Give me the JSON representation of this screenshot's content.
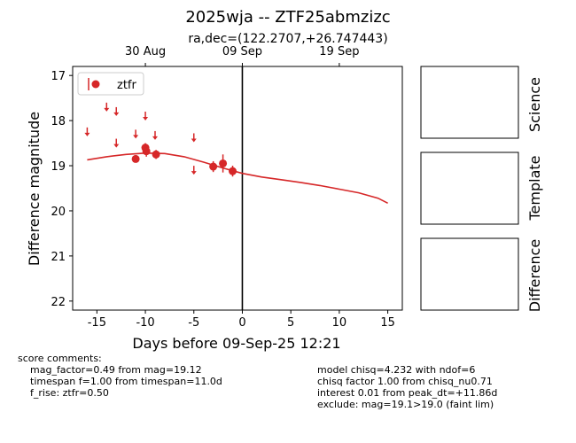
{
  "chart_data": {
    "type": "scatter",
    "title": "2025wja -- ZTF25abmzizc",
    "subtitle": "ra,dec=(122.2707,+26.747443)",
    "xlabel": "Days before 09-Sep-25 12:21",
    "ylabel": "Difference magnitude",
    "xlim": [
      -17.5,
      16.5
    ],
    "ylim": [
      22.2,
      16.8
    ],
    "y_inverted": true,
    "x_ticks": [
      -15,
      -10,
      -5,
      0,
      5,
      10,
      15
    ],
    "y_ticks": [
      17,
      18,
      19,
      20,
      21,
      22
    ],
    "top_axis_ticks": [
      {
        "label": "30 Aug",
        "x": -10
      },
      {
        "label": "09 Sep",
        "x": 0
      },
      {
        "label": "19 Sep",
        "x": 10
      }
    ],
    "vline_x": 0,
    "legend": {
      "label": "ztfr",
      "placement": "top-left"
    },
    "color": "#d62728",
    "detections": [
      {
        "x": -11.0,
        "y": 18.85,
        "err": 0.08
      },
      {
        "x": -10.0,
        "y": 18.6,
        "err": 0.1
      },
      {
        "x": -9.9,
        "y": 18.68,
        "err": 0.12
      },
      {
        "x": -8.9,
        "y": 18.75,
        "err": 0.1
      },
      {
        "x": -3.0,
        "y": 19.02,
        "err": 0.12
      },
      {
        "x": -2.0,
        "y": 18.95,
        "err": 0.2
      },
      {
        "x": -1.0,
        "y": 19.12,
        "err": 0.12
      }
    ],
    "upper_limits": [
      {
        "x": -16.0,
        "y": 18.25
      },
      {
        "x": -14.0,
        "y": 17.7
      },
      {
        "x": -13.0,
        "y": 17.8
      },
      {
        "x": -13.0,
        "y": 18.5
      },
      {
        "x": -11.0,
        "y": 18.3
      },
      {
        "x": -10.0,
        "y": 17.9
      },
      {
        "x": -9.0,
        "y": 18.33
      },
      {
        "x": -5.0,
        "y": 18.38
      },
      {
        "x": -5.0,
        "y": 19.1
      }
    ],
    "model_curve": {
      "x": [
        -16,
        -14,
        -12,
        -10,
        -8,
        -6,
        -4,
        -2,
        0,
        2,
        4,
        6,
        8,
        10,
        12,
        14,
        15
      ],
      "y": [
        18.87,
        18.8,
        18.75,
        18.72,
        18.73,
        18.8,
        18.92,
        19.05,
        19.17,
        19.25,
        19.31,
        19.37,
        19.44,
        19.52,
        19.6,
        19.72,
        19.83
      ]
    }
  },
  "thumbnails": {
    "science_label": "Science",
    "template_label": "Template",
    "difference_label": "Difference"
  },
  "score_comments": {
    "heading": "score comments:",
    "lines": [
      "mag_factor=0.49 from mag=19.12",
      "timespan f=1.00 from timespan=11.0d",
      "f_rise: ztfr=0.50"
    ]
  },
  "model_comments": {
    "lines": [
      "model chisq=4.232 with ndof=6",
      "chisq factor 1.00 from chisq_nu0.71",
      "interest 0.01 from peak_dt=+11.86d",
      "exclude: mag=19.1>19.0 (faint lim)"
    ]
  }
}
